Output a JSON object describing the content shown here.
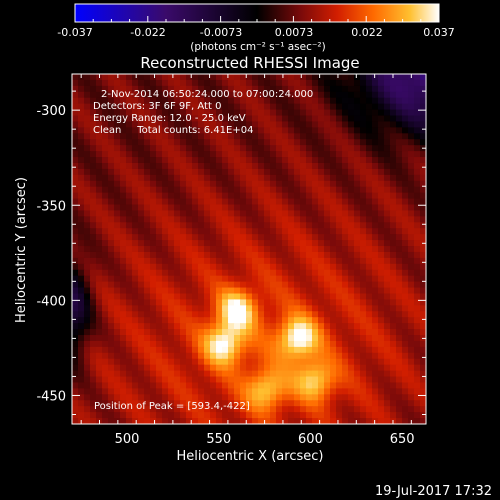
{
  "chart_data": {
    "type": "heatmap",
    "title": "Reconstructed RHESSI Image",
    "xlabel": "Heliocentric X (arcsec)",
    "ylabel": "Heliocentric Y (arcsec)",
    "xlim": [
      470,
      663
    ],
    "ylim": [
      -465,
      -281
    ],
    "x_ticks": [
      500,
      550,
      600,
      650
    ],
    "y_ticks": [
      -300,
      -350,
      -400,
      -450
    ],
    "colorbar": {
      "min": -0.037,
      "max": 0.037,
      "ticks": [
        "-0.037",
        "-0.022",
        "-0.0073",
        "0.0073",
        "0.022",
        "0.037"
      ],
      "unit_label": "(photons cm⁻² s⁻¹ asec⁻²)"
    },
    "grid": false,
    "annotations": {
      "time_range": "2-Nov-2014 06:50:24.000 to 07:00:24.000",
      "detectors": "Detectors: 3F 6F 9F, Att 0",
      "energy_range": "Energy Range: 12.0 - 25.0 keV",
      "clean_counts": "Clean     Total counts: 6.41E+04",
      "peak": "Position of Peak = [593.4,-422]"
    },
    "sources": [
      {
        "x": 560,
        "y": -405,
        "intensity": 0.032
      },
      {
        "x": 553,
        "y": -423,
        "intensity": 0.033
      },
      {
        "x": 593,
        "y": -420,
        "intensity": 0.035
      },
      {
        "x": 603,
        "y": -442,
        "intensity": 0.03
      },
      {
        "x": 576,
        "y": -447,
        "intensity": 0.029
      }
    ],
    "footer_timestamp": "19-Jul-2017 17:32"
  },
  "colors": {
    "colorbar_stops": [
      "#0000ff",
      "#4a0c6b",
      "#000000",
      "#6b0b0b",
      "#c01a00",
      "#ff5a00",
      "#ffa500",
      "#ffe040",
      "#ffffff"
    ]
  }
}
